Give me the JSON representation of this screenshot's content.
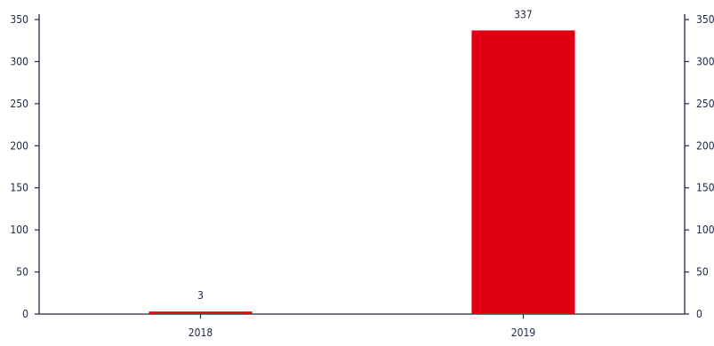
{
  "chart_data": {
    "type": "bar",
    "categories": [
      "2018",
      "2019"
    ],
    "values": [
      3,
      337
    ],
    "data_labels": [
      "3",
      "337"
    ],
    "ylim": [
      0,
      350
    ],
    "yticks": [
      0,
      50,
      100,
      150,
      200,
      250,
      300,
      350
    ],
    "title": "",
    "xlabel": "",
    "ylabel": "",
    "dual_y_axis": true,
    "grid": false,
    "legend": "none",
    "colors": {
      "bar": "#e00012",
      "axis": "#1f2a44",
      "text": "#1f2a44"
    }
  }
}
